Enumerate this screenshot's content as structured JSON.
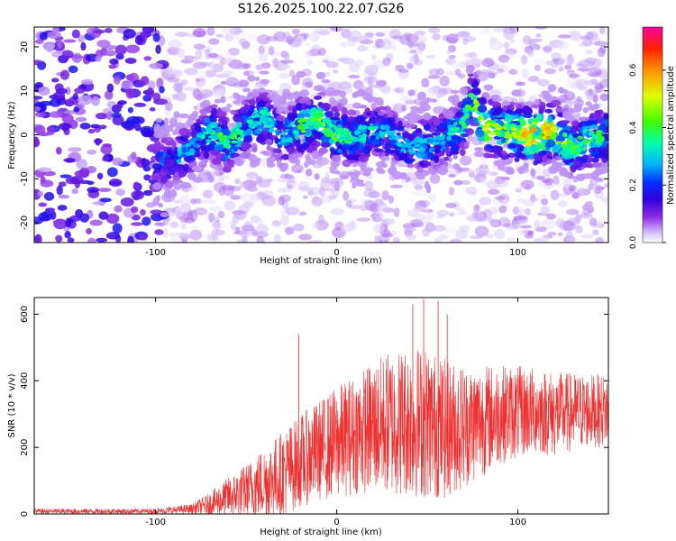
{
  "title": "S126.2025.100.22.07.G26",
  "chart_data": [
    {
      "type": "heatmap",
      "title": "S126.2025.100.22.07.G26",
      "xlabel": "Height of straight line (km)",
      "ylabel": "Frequency (Hz)",
      "xlim": [
        -167,
        150
      ],
      "ylim": [
        -24.5,
        24.5
      ],
      "x_ticks": [
        "-100",
        "0",
        "100"
      ],
      "y_ticks": [
        "-20",
        "-10",
        "0",
        "10",
        "20"
      ],
      "colorbar": {
        "label": "Normalized spectral amplitude",
        "range": [
          0.0,
          0.75
        ],
        "ticks": [
          "0.0",
          "0.2",
          "0.4",
          "0.6"
        ],
        "colors": [
          "#ffffff",
          "#d8c8ff",
          "#8a2be2",
          "#3000e0",
          "#0030ff",
          "#00b0ff",
          "#00ffb0",
          "#40ff00",
          "#e0ff00",
          "#ff9000",
          "#ff2000",
          "#ff00a0"
        ]
      },
      "ridge": {
        "x": [
          -167,
          -130,
          -100,
          -90,
          -80,
          -70,
          -60,
          -50,
          -40,
          -30,
          -20,
          -10,
          0,
          10,
          20,
          30,
          40,
          50,
          60,
          70,
          75,
          80,
          90,
          100,
          110,
          120,
          130,
          140,
          150
        ],
        "frequency": [
          0,
          0,
          -6,
          -6,
          -3,
          1,
          -2,
          2,
          4,
          -1,
          2,
          3,
          0,
          -1,
          1,
          0,
          -3,
          -2,
          -1,
          2,
          9,
          2,
          1,
          0,
          0,
          1,
          -3,
          -1,
          0
        ],
        "peak_amplitude": [
          0.1,
          0.15,
          0.25,
          0.3,
          0.3,
          0.4,
          0.45,
          0.35,
          0.4,
          0.3,
          0.45,
          0.5,
          0.45,
          0.4,
          0.35,
          0.3,
          0.3,
          0.35,
          0.35,
          0.45,
          0.55,
          0.6,
          0.5,
          0.55,
          0.75,
          0.6,
          0.45,
          0.45,
          0.4
        ]
      }
    },
    {
      "type": "line",
      "xlabel": "Height of straight line (km)",
      "ylabel": "SNR (10 * v/v)",
      "xlim": [
        -167,
        150
      ],
      "ylim": [
        0,
        650
      ],
      "x_ticks": [
        "-100",
        "0",
        "100"
      ],
      "y_ticks": [
        "0",
        "200",
        "400",
        "600"
      ],
      "color": "#ee3030",
      "envelope": {
        "x": [
          -167,
          -100,
          -80,
          -70,
          -60,
          -50,
          -40,
          -30,
          -20,
          -10,
          0,
          10,
          20,
          30,
          40,
          50,
          60,
          70,
          80,
          90,
          100,
          110,
          120,
          130,
          140,
          150
        ],
        "mean": [
          8,
          8,
          15,
          30,
          50,
          70,
          95,
          120,
          160,
          190,
          215,
          240,
          260,
          275,
          280,
          275,
          255,
          265,
          280,
          300,
          305,
          310,
          300,
          305,
          310,
          310
        ],
        "spread": [
          8,
          8,
          15,
          35,
          60,
          80,
          110,
          130,
          140,
          150,
          170,
          180,
          200,
          220,
          230,
          230,
          210,
          190,
          170,
          150,
          140,
          130,
          130,
          120,
          110,
          110
        ]
      },
      "spikes": [
        {
          "x": -21,
          "y": 540
        },
        {
          "x": 42,
          "y": 630
        },
        {
          "x": 48,
          "y": 645
        },
        {
          "x": 56,
          "y": 640
        },
        {
          "x": 61,
          "y": 600
        }
      ]
    }
  ]
}
